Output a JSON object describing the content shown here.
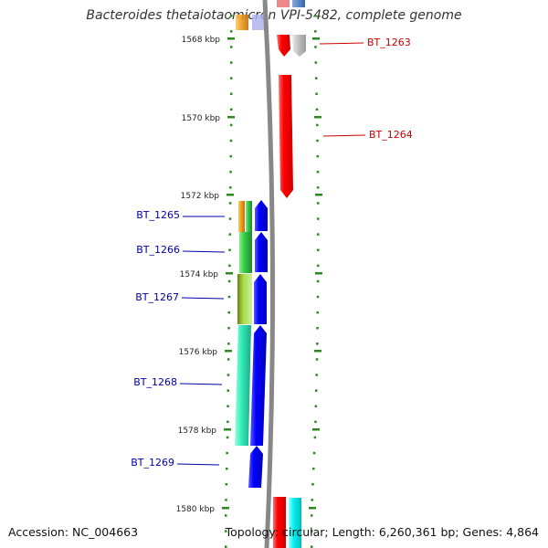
{
  "title": "Bacteroides thetaiotaomicron VPI-5482, complete genome",
  "footer": {
    "accession": "Accession: NC_004663",
    "summary": "Topology: circular; Length: 6,260,361 bp; Genes: 4,864"
  },
  "ruler": {
    "labels": [
      "1568 kbp",
      "1570 kbp",
      "1572 kbp",
      "1574 kbp",
      "1576 kbp",
      "1578 kbp",
      "1580 kbp"
    ]
  },
  "genes": [
    {
      "id": "BT_1263",
      "strand": "reverse",
      "color": "#cc0000"
    },
    {
      "id": "BT_1264",
      "strand": "reverse",
      "color": "#cc0000"
    },
    {
      "id": "BT_1265",
      "strand": "forward",
      "color": "#0000aa"
    },
    {
      "id": "BT_1266",
      "strand": "forward",
      "color": "#0000aa"
    },
    {
      "id": "BT_1267",
      "strand": "forward",
      "color": "#0000aa"
    },
    {
      "id": "BT_1268",
      "strand": "forward",
      "color": "#0000aa"
    },
    {
      "id": "BT_1269",
      "strand": "forward",
      "color": "#0000aa"
    }
  ],
  "colors": {
    "red": "#ee0000",
    "blue": "#0000ee",
    "gray": "#bbbbbb",
    "orange": "#f0a020",
    "green": "#33cc55",
    "yellowgreen": "#aadd44",
    "teal": "#33eebb",
    "cyan": "#00eeee",
    "tick": "#2b8a1e",
    "backbone": "#888888"
  }
}
